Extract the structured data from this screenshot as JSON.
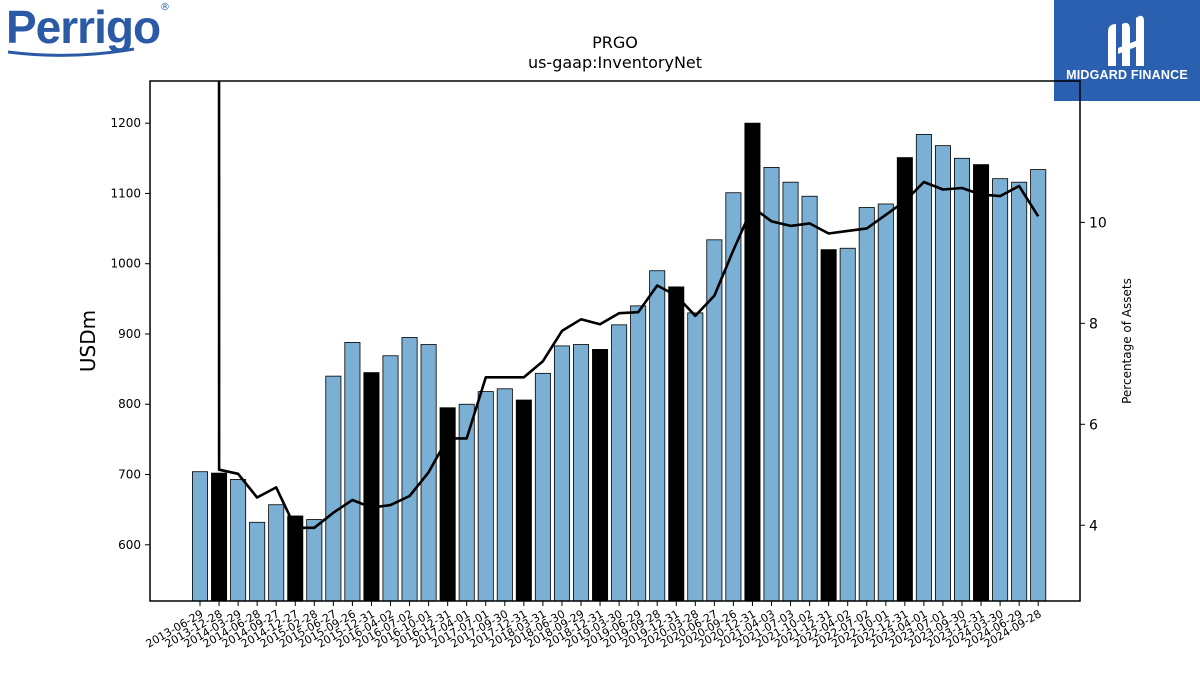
{
  "logos": {
    "company": "Perrigo",
    "company_mark": "®",
    "publisher": "MIDGARD FINANCE"
  },
  "chart_data": {
    "type": "bar",
    "title": "PRGO",
    "subtitle": "us-gaap:InventoryNet",
    "ylabel": "USDm",
    "y2label": "Percentage of Assets",
    "ylim": [
      520,
      1260
    ],
    "y2lim": [
      2.5,
      12.8
    ],
    "yticks": [
      600,
      700,
      800,
      900,
      1000,
      1100,
      1200
    ],
    "y2ticks": [
      4,
      6,
      8,
      10
    ],
    "categories": [
      "2013-06-29",
      "2013-12-28",
      "2014-03-29",
      "2014-06-28",
      "2014-09-27",
      "2014-12-27",
      "2015-02-28",
      "2015-06-27",
      "2015-09-26",
      "2015-12-31",
      "2016-04-02",
      "2016-07-02",
      "2016-10-01",
      "2016-12-31",
      "2017-04-01",
      "2017-07-01",
      "2017-09-30",
      "2017-12-31",
      "2018-03-31",
      "2018-06-30",
      "2018-09-29",
      "2018-12-31",
      "2019-03-30",
      "2019-06-29",
      "2019-09-28",
      "2019-12-31",
      "2020-03-28",
      "2020-06-27",
      "2020-09-26",
      "2020-12-31",
      "2021-04-03",
      "2021-07-03",
      "2021-10-02",
      "2021-12-31",
      "2022-04-02",
      "2022-07-02",
      "2022-10-01",
      "2022-12-31",
      "2023-04-01",
      "2023-07-01",
      "2023-09-30",
      "2023-12-31",
      "2024-03-30",
      "2024-06-29",
      "2024-09-28"
    ],
    "x_tick_labels": [
      "2013-06-29",
      "2013-12-28",
      "2014-03-29",
      "2014-06-28",
      "2014-09-27",
      "2014-12-27",
      "2015-02-28",
      "2015-06-27",
      "2015-09-26",
      "2015-12-31",
      "2016-04-02",
      "2016-07-02",
      "2016-10-01",
      "2016-12-31",
      "2017-04-01",
      "2017-07-01",
      "2017-09-30",
      "2017-12-31",
      "2018-03-31",
      "2018-06-30",
      "2018-09-29",
      "2018-12-31",
      "2019-03-30",
      "2019-06-29",
      "2019-09-28",
      "2019-12-31",
      "2020-03-28",
      "2020-06-27",
      "2020-09-26",
      "2020-12-31",
      "2021-04-03",
      "2021-07-03",
      "2021-10-02",
      "2021-12-31",
      "2022-04-02",
      "2022-07-02",
      "2022-10-01",
      "2022-12-31",
      "2023-04-01",
      "2023-07-01",
      "2023-09-30",
      "2023-12-31",
      "2024-03-30",
      "2024-06-29",
      "2024-09-28"
    ],
    "values": [
      704,
      702,
      693,
      632,
      657,
      641,
      636,
      840,
      888,
      845,
      869,
      895,
      885,
      795,
      800,
      818,
      822,
      806,
      844,
      883,
      885,
      878,
      913,
      940,
      990,
      967,
      930,
      1034,
      1101,
      1200,
      1137,
      1116,
      1096,
      1020,
      1022,
      1080,
      1085,
      1151,
      1184,
      1168,
      1150,
      1141,
      1121,
      1116,
      1134
    ],
    "highlight": [
      false,
      true,
      false,
      false,
      false,
      true,
      false,
      false,
      false,
      true,
      false,
      false,
      false,
      true,
      false,
      false,
      false,
      true,
      false,
      false,
      false,
      true,
      false,
      false,
      false,
      true,
      false,
      false,
      false,
      true,
      false,
      false,
      false,
      true,
      false,
      false,
      false,
      true,
      false,
      false,
      false,
      true,
      false,
      false,
      false
    ],
    "line_series": {
      "values": [
        null,
        5.1,
        5.02,
        4.55,
        4.75,
        3.95,
        3.95,
        4.25,
        4.5,
        4.35,
        4.4,
        4.58,
        5.05,
        5.72,
        5.72,
        6.93,
        6.93,
        6.93,
        7.25,
        7.85,
        8.08,
        7.98,
        8.2,
        8.22,
        8.75,
        8.55,
        8.15,
        8.55,
        9.45,
        10.3,
        10.02,
        9.93,
        9.98,
        9.78,
        9.83,
        9.88,
        10.15,
        10.42,
        10.8,
        10.65,
        10.68,
        10.55,
        10.52,
        10.72,
        10.12
      ],
      "start_from_top": true
    },
    "colors": {
      "bar": "#7bafd4",
      "bar_highlight": "#000000",
      "line": "#000000"
    },
    "grid": false,
    "legend": "none"
  }
}
